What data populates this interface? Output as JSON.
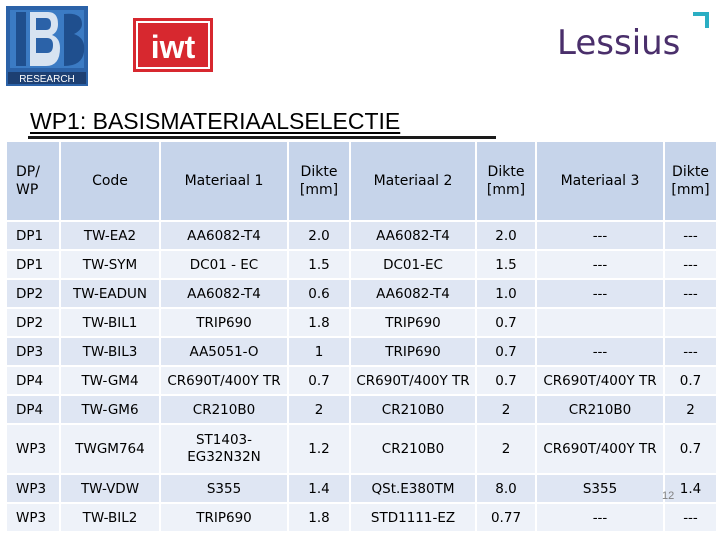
{
  "logos": {
    "left": {
      "text": "RESEARCH",
      "colors": {
        "primary": "#2e6fb5",
        "band": "#ffffff"
      }
    },
    "middle": {
      "text": "iwt",
      "color": "#d7282f"
    },
    "right": {
      "text": "Lessius",
      "color": "#4a2f6b",
      "accent": "#2aaec3"
    }
  },
  "title": "WP1: BASISMATERIAALSELECTIE",
  "table": {
    "headers": [
      "DP/ WP",
      "Code",
      "Materiaal 1",
      "Dikte [mm]",
      "Materiaal 2",
      "Dikte [mm]",
      "Materiaal 3",
      "Dikte [mm]"
    ],
    "rows": [
      [
        "DP1",
        "TW-EA2",
        "AA6082-T4",
        "2.0",
        "AA6082-T4",
        "2.0",
        "---",
        "---"
      ],
      [
        "DP1",
        "TW-SYM",
        "DC01 - EC",
        "1.5",
        "DC01-EC",
        "1.5",
        "---",
        "---"
      ],
      [
        "DP2",
        "TW-EADUN",
        "AA6082-T4",
        "0.6",
        "AA6082-T4",
        "1.0",
        "---",
        "---"
      ],
      [
        "DP2",
        "TW-BIL1",
        "TRIP690",
        "1.8",
        "TRIP690",
        "0.7",
        "",
        ""
      ],
      [
        "DP3",
        "TW-BIL3",
        "AA5051-O",
        "1",
        "TRIP690",
        "0.7",
        "---",
        "---"
      ],
      [
        "DP4",
        "TW-GM4",
        "CR690T/400Y TR",
        "0.7",
        "CR690T/400Y TR",
        "0.7",
        "CR690T/400Y TR",
        "0.7"
      ],
      [
        "DP4",
        "TW-GM6",
        "CR210B0",
        "2",
        "CR210B0",
        "2",
        "CR210B0",
        "2"
      ],
      [
        "WP3",
        "TWGM764",
        "ST1403-EG32N32N",
        "1.2",
        "CR210B0",
        "2",
        "CR690T/400Y TR",
        "0.7"
      ],
      [
        "WP3",
        "TW-VDW",
        "S355",
        "1.4",
        "QSt.E380TM",
        "8.0",
        "S355",
        "1.4"
      ],
      [
        "WP3",
        "TW-BIL2",
        "TRIP690",
        "1.8",
        "STD1111-EZ",
        "0.77",
        "---",
        "---"
      ]
    ]
  },
  "page_number": "12"
}
